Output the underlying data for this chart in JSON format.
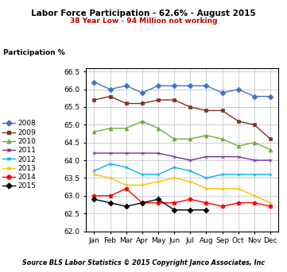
{
  "title": "Labor Force Participation - 62.6% - August 2015",
  "subtitle": "38 Year Low - 94 Million not working",
  "source_note": "Source BLS Labor Statistics © 2015 Copyright Janco Associates, Inc",
  "ylabel": "Participation %",
  "months": [
    "Jan",
    "Feb",
    "Mar",
    "Apr",
    "May",
    "Jun",
    "Jul",
    "Aug",
    "Sep",
    "Oct",
    "Nov",
    "Dec"
  ],
  "ylim": [
    62.0,
    66.6
  ],
  "yticks": [
    62.0,
    62.5,
    63.0,
    63.5,
    64.0,
    64.5,
    65.0,
    65.5,
    66.0,
    66.5
  ],
  "series": [
    {
      "year": "2008",
      "data": [
        66.2,
        66.0,
        66.1,
        65.9,
        66.1,
        66.1,
        66.1,
        66.1,
        65.9,
        66.0,
        65.8,
        65.8
      ],
      "color": "#4472C4",
      "marker": "D"
    },
    {
      "year": "2009",
      "data": [
        65.7,
        65.8,
        65.6,
        65.6,
        65.7,
        65.7,
        65.5,
        65.4,
        65.4,
        65.1,
        65.0,
        64.6
      ],
      "color": "#7B3520",
      "marker": "s"
    },
    {
      "year": "2010",
      "data": [
        64.8,
        64.9,
        64.9,
        65.1,
        64.9,
        64.6,
        64.6,
        64.7,
        64.6,
        64.4,
        64.5,
        64.3
      ],
      "color": "#70AD47",
      "marker": "^"
    },
    {
      "year": "2011",
      "data": [
        64.2,
        64.2,
        64.2,
        64.2,
        64.2,
        64.1,
        64.0,
        64.1,
        64.1,
        64.1,
        64.0,
        64.0
      ],
      "color": "#7030A0",
      "marker": "x"
    },
    {
      "year": "2012",
      "data": [
        63.7,
        63.9,
        63.8,
        63.6,
        63.6,
        63.8,
        63.7,
        63.5,
        63.6,
        63.6,
        63.6,
        63.6
      ],
      "color": "#00B0F0",
      "marker": "x"
    },
    {
      "year": "2013",
      "data": [
        63.6,
        63.5,
        63.3,
        63.3,
        63.4,
        63.5,
        63.4,
        63.2,
        63.2,
        63.2,
        63.0,
        62.8
      ],
      "color": "#FFC000",
      "marker": "x"
    },
    {
      "year": "2014",
      "data": [
        63.0,
        63.0,
        63.2,
        62.8,
        62.8,
        62.8,
        62.9,
        62.8,
        62.7,
        62.8,
        62.8,
        62.7
      ],
      "color": "#FF0000",
      "marker": "o"
    },
    {
      "year": "2015",
      "data": [
        62.9,
        62.8,
        62.7,
        62.8,
        62.9,
        62.6,
        62.6,
        62.6,
        null,
        null,
        null,
        null
      ],
      "color": "#000000",
      "marker": "D"
    }
  ]
}
